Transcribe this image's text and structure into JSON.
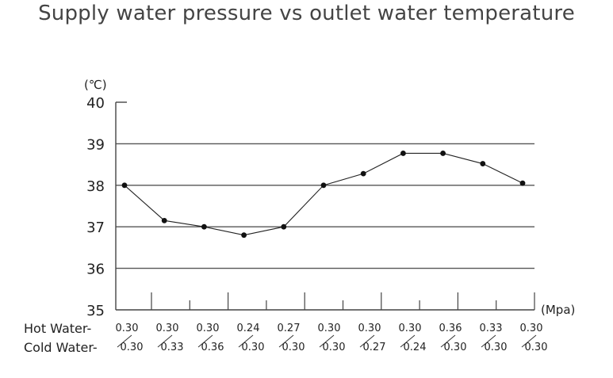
{
  "chart_data": {
    "type": "line",
    "title": "Supply water pressure vs outlet water temperature",
    "y_unit": "(℃)",
    "x_unit": "(Mpa)",
    "ylim": [
      35,
      40
    ],
    "y_ticks": [
      "35",
      "36",
      "37",
      "38",
      "39",
      "40"
    ],
    "grid": "horizontal",
    "row_labels": {
      "hot": "Hot Water-",
      "cold": "Cold Water-"
    },
    "hot_water": [
      "0.30",
      "0.30",
      "0.30",
      "0.24",
      "0.27",
      "0.30",
      "0.30",
      "0.30",
      "0.36",
      "0.33",
      "0.30"
    ],
    "cold_water": [
      "0.30",
      "0.33",
      "0.36",
      "0.30",
      "0.30",
      "0.30",
      "0.27",
      "0.24",
      "0.30",
      "0.30",
      "0.30"
    ],
    "series": [
      {
        "values": [
          38.0,
          37.15,
          37.0,
          36.8,
          37.0,
          38.0,
          38.28,
          38.77,
          38.77,
          38.52,
          38.05
        ]
      }
    ]
  }
}
